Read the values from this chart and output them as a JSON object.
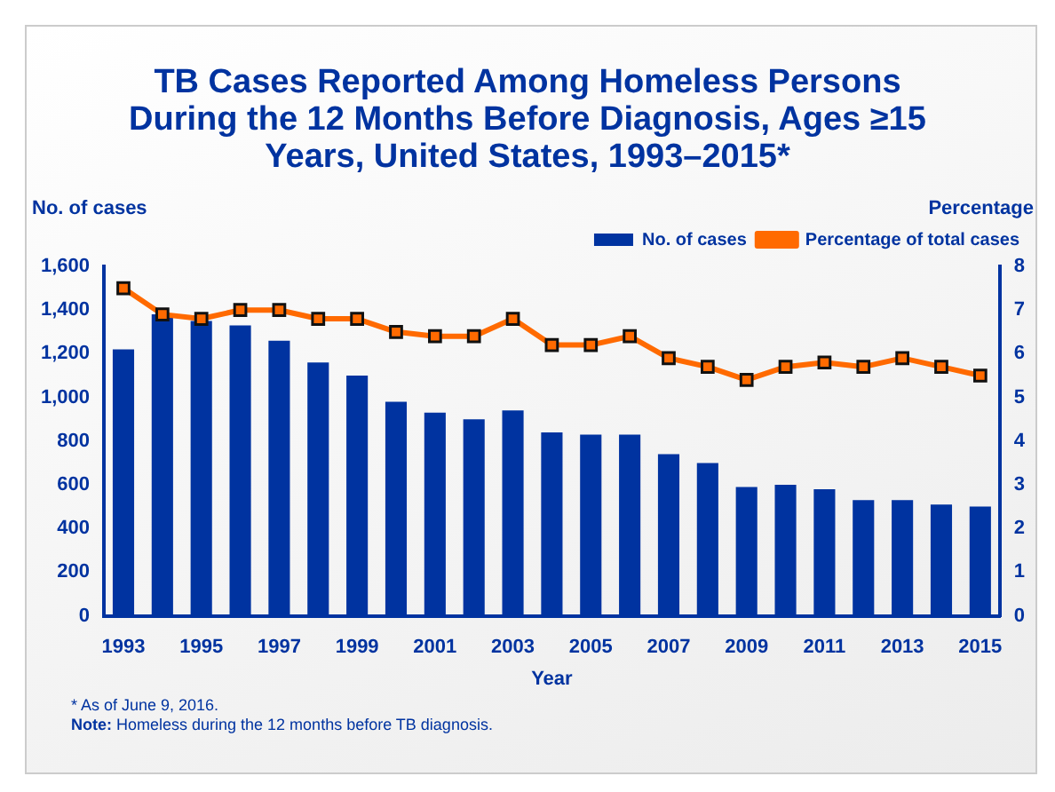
{
  "chart_data": {
    "type": "bar",
    "title": "TB Cases Reported Among Homeless Persons During the 12 Months Before Diagnosis, Ages ≥15 Years, United States, 1993–2015*",
    "xlabel": "Year",
    "ylabel": "No. of cases",
    "y2label": "Percentage",
    "categories": [
      "1993",
      null,
      "1995",
      null,
      "1997",
      null,
      "1999",
      null,
      "2001",
      null,
      "2003",
      null,
      "2005",
      null,
      "2007",
      null,
      "2009",
      null,
      "2011",
      null,
      "2013",
      null,
      "2015"
    ],
    "series": [
      {
        "name": "No. of cases",
        "color": "#0033a0",
        "values": [
          1220,
          1380,
          1350,
          1330,
          1260,
          1160,
          1100,
          980,
          930,
          900,
          940,
          840,
          830,
          830,
          740,
          700,
          590,
          600,
          580,
          530,
          530,
          510,
          500
        ]
      },
      {
        "name": "Percentage of total cases",
        "type": "line",
        "axis": "y2",
        "color": "#ff6a00",
        "marker": "square",
        "values": [
          7.5,
          6.9,
          6.8,
          7.0,
          7.0,
          6.8,
          6.8,
          6.5,
          6.4,
          6.4,
          6.8,
          6.2,
          6.2,
          6.4,
          5.9,
          5.7,
          5.4,
          5.7,
          5.8,
          5.7,
          5.9,
          5.7,
          5.5
        ]
      }
    ],
    "ylim": [
      0,
      1600
    ],
    "yticks": [
      0,
      200,
      400,
      600,
      800,
      {
        "value": 1000,
        "label": "1,000"
      },
      {
        "value": 1200,
        "label": "1,200"
      },
      {
        "value": 1400,
        "label": "1,400"
      },
      {
        "value": 1600,
        "label": "1,600"
      }
    ],
    "y2lim": [
      0,
      8
    ],
    "y2ticks": [
      0,
      1,
      2,
      3,
      4,
      5,
      6,
      7,
      8
    ],
    "grid": false,
    "legend": "top right",
    "annotations": [
      "* As of June 9, 2016.",
      "Note: Homeless during the 12 months before TB diagnosis."
    ]
  }
}
